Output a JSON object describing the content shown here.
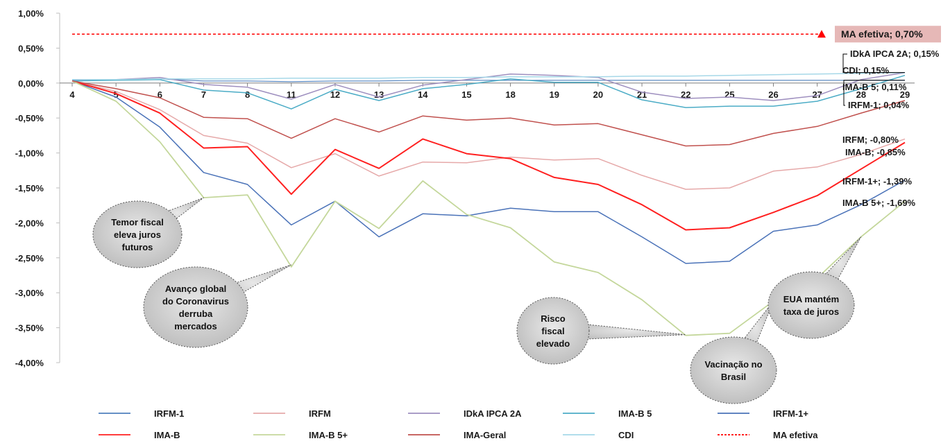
{
  "chart_data": {
    "type": "line",
    "categories": [
      "4",
      "5",
      "6",
      "7",
      "8",
      "11",
      "12",
      "13",
      "14",
      "15",
      "18",
      "19",
      "20",
      "21",
      "22",
      "25",
      "26",
      "27",
      "28",
      "29"
    ],
    "ylim": [
      -4.0,
      1.0
    ],
    "yticks": [
      "1,00%",
      "0,50%",
      "0,00%",
      "-0,50%",
      "-1,00%",
      "-1,50%",
      "-2,00%",
      "-2,50%",
      "-3,00%",
      "-3,50%",
      "-4,00%"
    ],
    "ytick_values": [
      1.0,
      0.5,
      0.0,
      -0.5,
      -1.0,
      -1.5,
      -2.0,
      -2.5,
      -3.0,
      -3.5,
      -4.0
    ],
    "series": [
      {
        "name": "IRFM-1",
        "color": "#4f81bd",
        "width": 1.2,
        "values": [
          0.04,
          0.05,
          0.06,
          0.03,
          0.03,
          0.02,
          0.03,
          0.03,
          0.04,
          0.04,
          0.04,
          0.04,
          0.04,
          0.04,
          0.04,
          0.04,
          0.04,
          0.04,
          0.04,
          0.04
        ]
      },
      {
        "name": "IRFM",
        "color": "#e6a9a9",
        "width": 1.5,
        "values": [
          0.03,
          -0.12,
          -0.38,
          -0.75,
          -0.86,
          -1.21,
          -1.01,
          -1.33,
          -1.13,
          -1.14,
          -1.06,
          -1.1,
          -1.08,
          -1.32,
          -1.52,
          -1.5,
          -1.26,
          -1.2,
          -1.02,
          -0.8
        ]
      },
      {
        "name": "IDkA IPCA 2A",
        "color": "#9e8fbf",
        "width": 1.5,
        "values": [
          0.03,
          0.05,
          0.08,
          -0.02,
          -0.06,
          -0.23,
          -0.02,
          -0.2,
          -0.03,
          0.05,
          0.13,
          0.11,
          0.08,
          -0.13,
          -0.22,
          -0.2,
          -0.25,
          -0.18,
          0.05,
          0.15
        ]
      },
      {
        "name": "IMA-B 5",
        "color": "#4bacc6",
        "width": 1.5,
        "values": [
          0.03,
          0.04,
          0.05,
          -0.1,
          -0.14,
          -0.37,
          -0.09,
          -0.25,
          -0.08,
          -0.02,
          0.06,
          0.01,
          0.01,
          -0.24,
          -0.35,
          -0.33,
          -0.33,
          -0.26,
          -0.08,
          0.11
        ]
      },
      {
        "name": "IRFM-1+",
        "color": "#4a72b8",
        "width": 1.5,
        "values": [
          0.03,
          -0.2,
          -0.63,
          -1.28,
          -1.45,
          -2.03,
          -1.69,
          -2.2,
          -1.87,
          -1.9,
          -1.79,
          -1.84,
          -1.84,
          -2.2,
          -2.58,
          -2.55,
          -2.12,
          -2.03,
          -1.74,
          -1.39
        ]
      },
      {
        "name": "IMA-B",
        "color": "#ff2020",
        "width": 2.0,
        "values": [
          0.03,
          -0.15,
          -0.43,
          -0.93,
          -0.91,
          -1.59,
          -0.95,
          -1.22,
          -0.8,
          -1.01,
          -1.08,
          -1.35,
          -1.45,
          -1.74,
          -2.1,
          -2.07,
          -1.85,
          -1.61,
          -1.23,
          -0.85
        ]
      },
      {
        "name": "IMA-B 5+",
        "color": "#c4d79b",
        "width": 1.8,
        "values": [
          0.03,
          -0.26,
          -0.84,
          -1.64,
          -1.6,
          -2.63,
          -1.69,
          -2.08,
          -1.4,
          -1.88,
          -2.07,
          -2.56,
          -2.71,
          -3.1,
          -3.61,
          -3.58,
          -3.12,
          -2.79,
          -2.2,
          -1.69
        ]
      },
      {
        "name": "IMA-Geral",
        "color": "#c0504d",
        "width": 1.5,
        "values": [
          0.03,
          -0.08,
          -0.21,
          -0.49,
          -0.51,
          -0.79,
          -0.51,
          -0.7,
          -0.47,
          -0.53,
          -0.5,
          -0.6,
          -0.58,
          -0.74,
          -0.9,
          -0.88,
          -0.72,
          -0.62,
          -0.43,
          -0.25
        ]
      },
      {
        "name": "CDI",
        "color": "#a6d8e8",
        "width": 1.5,
        "values": [
          0.05,
          0.05,
          0.06,
          0.06,
          0.06,
          0.07,
          0.07,
          0.07,
          0.08,
          0.08,
          0.09,
          0.09,
          0.09,
          0.1,
          0.1,
          0.11,
          0.12,
          0.13,
          0.14,
          0.15
        ]
      }
    ],
    "ma_efetiva": {
      "name": "MA efetiva",
      "value": 0.7,
      "color": "#ff0000",
      "label": "MA efetiva; 0,70%"
    },
    "end_labels": [
      "IDkA IPCA 2A; 0,15%",
      "CDI; 0,15%",
      "IMA-B 5; 0,11%",
      "IRFM-1; 0,04%",
      "IRFM; -0,80%",
      "IMA-B; -0,85%",
      "IRFM-1+; -1,39%",
      "IMA-B 5+; -1,69%"
    ],
    "annotations": [
      {
        "lines": [
          "Temor fiscal",
          "eleva juros",
          "futuros"
        ],
        "category": "7",
        "value": -1.64
      },
      {
        "lines": [
          "Avanço global",
          "do Coronavirus",
          "derruba",
          "mercados"
        ],
        "category": "11",
        "value": -2.6
      },
      {
        "lines": [
          "Risco",
          "fiscal",
          "elevado"
        ],
        "category": "22",
        "value": -3.6
      },
      {
        "lines": [
          "Vacinação no",
          "Brasil"
        ],
        "category": "26",
        "value": -3.12
      },
      {
        "lines": [
          "EUA mantém",
          "taxa de juros"
        ],
        "category": "28",
        "value": -2.2
      }
    ],
    "grid": false,
    "legend": "bottom"
  }
}
